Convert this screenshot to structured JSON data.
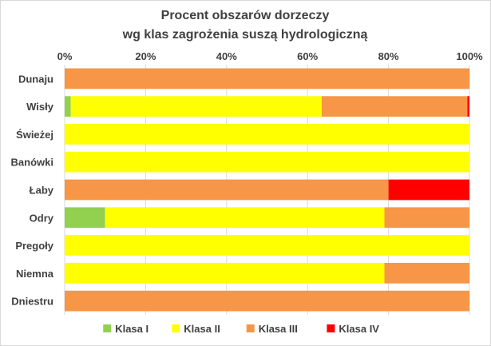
{
  "chart_data": {
    "type": "bar",
    "orientation": "horizontal",
    "stacked": "percent",
    "title": "Procent obszarów dorzeczy",
    "subtitle": "wg klas zagrożenia suszą hydrologiczną",
    "x_axis_position": "top",
    "xlim": [
      0,
      100
    ],
    "xticks": [
      0,
      20,
      40,
      60,
      80,
      100
    ],
    "xtick_labels": [
      "0%",
      "20%",
      "40%",
      "60%",
      "80%",
      "100%"
    ],
    "grid": "vertical",
    "legend_position": "bottom",
    "categories": [
      "Dunaju",
      "Wisły",
      "Świeżej",
      "Banówki",
      "Łaby",
      "Odry",
      "Pregoły",
      "Niemna",
      "Dniestru"
    ],
    "series": [
      {
        "name": "Klasa I",
        "color": "#92d050",
        "values": [
          0,
          1.5,
          0,
          0,
          0,
          10,
          0,
          0,
          0
        ]
      },
      {
        "name": "Klasa II",
        "color": "#ffff00",
        "values": [
          0,
          62,
          100,
          100,
          0,
          69,
          100,
          79,
          0
        ]
      },
      {
        "name": "Klasa III",
        "color": "#f79646",
        "values": [
          100,
          36,
          0,
          0,
          80,
          21,
          0,
          21,
          100
        ]
      },
      {
        "name": "Klasa IV",
        "color": "#ff0000",
        "values": [
          0,
          0.5,
          0,
          0,
          20,
          0,
          0,
          0,
          0
        ]
      }
    ]
  }
}
